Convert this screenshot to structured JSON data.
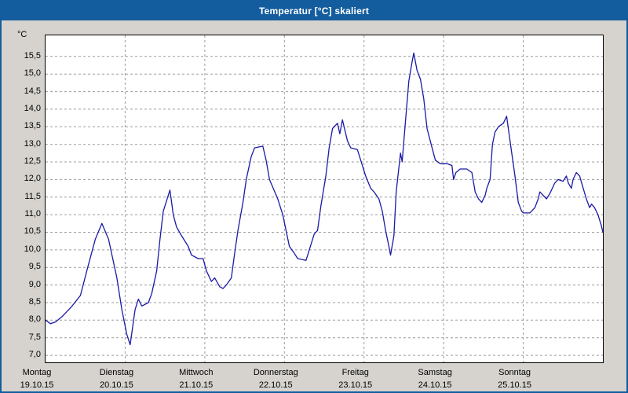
{
  "title": "Temperatur [°C] skaliert",
  "colors": {
    "titlebar": "#135d9e",
    "window_bg": "#d6d3ce",
    "plot_bg": "#ffffff",
    "line": "#1a1aa6",
    "grid": "#9c9c9c",
    "plot_border": "#000000"
  },
  "chart_data": {
    "type": "line",
    "title": "Temperatur [°C] skaliert",
    "ylabel": "°C",
    "xlabel": "",
    "legend": "none",
    "grid": "dashed",
    "ylim": [
      6.8,
      16.1
    ],
    "xlim_hours": [
      0,
      168
    ],
    "yticks": [
      7.0,
      7.5,
      8.0,
      8.5,
      9.0,
      9.5,
      10.0,
      10.5,
      11.0,
      11.5,
      12.0,
      12.5,
      13.0,
      13.5,
      14.0,
      14.5,
      15.0,
      15.5
    ],
    "ytick_labels": [
      "7,0",
      "7,5",
      "8,0",
      "8,5",
      "9,0",
      "9,5",
      "10,0",
      "10,5",
      "11,0",
      "11,5",
      "12,0",
      "12,5",
      "13,0",
      "13,5",
      "14,0",
      "14,5",
      "15,0",
      "15,5"
    ],
    "xtick_days": [
      {
        "name": "Montag",
        "date": "19.10.15"
      },
      {
        "name": "Dienstag",
        "date": "20.10.15"
      },
      {
        "name": "Mittwoch",
        "date": "21.10.15"
      },
      {
        "name": "Donnerstag",
        "date": "22.10.15"
      },
      {
        "name": "Freitag",
        "date": "23.10.15"
      },
      {
        "name": "Samstag",
        "date": "24.10.15"
      },
      {
        "name": "Sonntag",
        "date": "25.10.15"
      }
    ],
    "series": [
      {
        "name": "Temperatur [°C]",
        "x_unit": "hours since Montag 19.10.15 00:00",
        "points": [
          [
            0,
            8.0
          ],
          [
            1.5,
            7.9
          ],
          [
            3,
            7.95
          ],
          [
            5,
            8.1
          ],
          [
            8,
            8.4
          ],
          [
            10.5,
            8.7
          ],
          [
            13,
            9.6
          ],
          [
            15,
            10.3
          ],
          [
            17,
            10.75
          ],
          [
            19,
            10.3
          ],
          [
            21.5,
            9.2
          ],
          [
            23,
            8.3
          ],
          [
            24.5,
            7.6
          ],
          [
            25.5,
            7.3
          ],
          [
            27,
            8.3
          ],
          [
            28,
            8.6
          ],
          [
            29,
            8.4
          ],
          [
            31,
            8.5
          ],
          [
            32,
            8.75
          ],
          [
            33.5,
            9.4
          ],
          [
            34.5,
            10.3
          ],
          [
            35.5,
            11.1
          ],
          [
            37.5,
            11.7
          ],
          [
            38.5,
            11.0
          ],
          [
            39.5,
            10.65
          ],
          [
            41,
            10.4
          ],
          [
            43,
            10.1
          ],
          [
            44,
            9.85
          ],
          [
            46,
            9.75
          ],
          [
            47.5,
            9.75
          ],
          [
            48.5,
            9.4
          ],
          [
            50,
            9.1
          ],
          [
            51,
            9.2
          ],
          [
            52.5,
            8.95
          ],
          [
            53.5,
            8.9
          ],
          [
            54.5,
            9.0
          ],
          [
            56,
            9.2
          ],
          [
            57,
            9.9
          ],
          [
            58,
            10.55
          ],
          [
            59.5,
            11.35
          ],
          [
            60.5,
            12.0
          ],
          [
            62,
            12.65
          ],
          [
            63,
            12.9
          ],
          [
            65.5,
            12.95
          ],
          [
            66.5,
            12.55
          ],
          [
            67.5,
            12.0
          ],
          [
            70,
            11.45
          ],
          [
            71.5,
            11.0
          ],
          [
            72.5,
            10.55
          ],
          [
            73.5,
            10.1
          ],
          [
            75,
            9.9
          ],
          [
            76,
            9.75
          ],
          [
            78.5,
            9.7
          ],
          [
            79.5,
            10.0
          ],
          [
            81,
            10.45
          ],
          [
            82,
            10.55
          ],
          [
            83,
            11.25
          ],
          [
            84.5,
            12.1
          ],
          [
            85.5,
            12.9
          ],
          [
            86.5,
            13.45
          ],
          [
            88,
            13.6
          ],
          [
            88.7,
            13.3
          ],
          [
            89.5,
            13.7
          ],
          [
            91,
            13.1
          ],
          [
            92,
            12.9
          ],
          [
            94,
            12.85
          ],
          [
            95,
            12.55
          ],
          [
            96.5,
            12.1
          ],
          [
            98,
            11.75
          ],
          [
            99,
            11.65
          ],
          [
            100.5,
            11.45
          ],
          [
            101.5,
            11.1
          ],
          [
            102.5,
            10.55
          ],
          [
            103.5,
            10.1
          ],
          [
            104,
            9.85
          ],
          [
            105,
            10.4
          ],
          [
            105.7,
            11.65
          ],
          [
            107,
            12.75
          ],
          [
            107.5,
            12.5
          ],
          [
            108.5,
            13.65
          ],
          [
            109.5,
            14.8
          ],
          [
            110.5,
            15.35
          ],
          [
            111,
            15.6
          ],
          [
            112,
            15.1
          ],
          [
            113,
            14.85
          ],
          [
            114,
            14.3
          ],
          [
            115,
            13.45
          ],
          [
            116.5,
            12.9
          ],
          [
            117.5,
            12.55
          ],
          [
            119,
            12.45
          ],
          [
            121,
            12.45
          ],
          [
            122.5,
            12.4
          ],
          [
            123,
            12.0
          ],
          [
            123.7,
            12.2
          ],
          [
            125,
            12.3
          ],
          [
            127,
            12.3
          ],
          [
            128.5,
            12.2
          ],
          [
            129.5,
            11.65
          ],
          [
            130.5,
            11.45
          ],
          [
            131.5,
            11.35
          ],
          [
            132.5,
            11.55
          ],
          [
            133,
            11.75
          ],
          [
            134,
            12.0
          ],
          [
            134.7,
            13.0
          ],
          [
            135.5,
            13.35
          ],
          [
            136.5,
            13.5
          ],
          [
            138,
            13.6
          ],
          [
            139,
            13.8
          ],
          [
            140,
            13.1
          ],
          [
            141.5,
            12.1
          ],
          [
            142.5,
            11.35
          ],
          [
            143.5,
            11.1
          ],
          [
            144,
            11.05
          ],
          [
            146,
            11.05
          ],
          [
            147.5,
            11.2
          ],
          [
            148.5,
            11.45
          ],
          [
            149,
            11.65
          ],
          [
            150,
            11.55
          ],
          [
            151,
            11.45
          ],
          [
            152,
            11.6
          ],
          [
            153.5,
            11.9
          ],
          [
            154.5,
            12.0
          ],
          [
            156,
            11.95
          ],
          [
            157,
            12.1
          ],
          [
            157.6,
            11.9
          ],
          [
            158.5,
            11.75
          ],
          [
            159,
            12.0
          ],
          [
            160,
            12.2
          ],
          [
            161,
            12.1
          ],
          [
            161.6,
            11.9
          ],
          [
            163,
            11.45
          ],
          [
            164,
            11.2
          ],
          [
            164.6,
            11.3
          ],
          [
            165.5,
            11.2
          ],
          [
            166.5,
            11.0
          ],
          [
            167.5,
            10.7
          ],
          [
            168,
            10.5
          ]
        ]
      }
    ]
  }
}
